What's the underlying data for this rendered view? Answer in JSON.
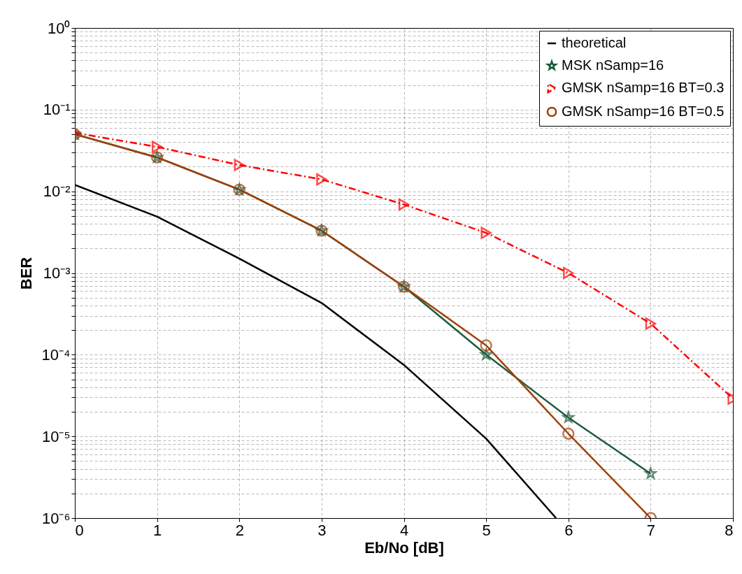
{
  "chart_data": {
    "type": "line",
    "xlabel": "Eb/No [dB]",
    "ylabel": "BER",
    "log": "y",
    "grid": true,
    "legend": "top right",
    "xlim": [
      0,
      8
    ],
    "xticks": [
      0,
      1,
      2,
      3,
      4,
      5,
      6,
      7,
      8
    ],
    "ylim": [
      1e-06,
      1
    ],
    "yticks": [
      {
        "value": 1e-06,
        "label": "10⁻⁶"
      },
      {
        "value": 2e-06,
        "label": null
      },
      {
        "value": 3e-06,
        "label": null
      },
      {
        "value": 4e-06,
        "label": null
      },
      {
        "value": 5e-06,
        "label": null
      },
      {
        "value": 6e-06,
        "label": null
      },
      {
        "value": 7e-06,
        "label": null
      },
      {
        "value": 8e-06,
        "label": null
      },
      {
        "value": 9e-06,
        "label": null
      },
      {
        "value": 1e-05,
        "label": "10⁻⁵"
      },
      {
        "value": 2e-05,
        "label": null
      },
      {
        "value": 3e-05,
        "label": null
      },
      {
        "value": 4e-05,
        "label": null
      },
      {
        "value": 5e-05,
        "label": null
      },
      {
        "value": 6e-05,
        "label": null
      },
      {
        "value": 7e-05,
        "label": null
      },
      {
        "value": 8e-05,
        "label": null
      },
      {
        "value": 9e-05,
        "label": null
      },
      {
        "value": 0.0001,
        "label": "10⁻⁴"
      },
      {
        "value": 0.0002,
        "label": null
      },
      {
        "value": 0.0003,
        "label": null
      },
      {
        "value": 0.0004,
        "label": null
      },
      {
        "value": 0.0005,
        "label": null
      },
      {
        "value": 0.0006,
        "label": null
      },
      {
        "value": 0.0007,
        "label": null
      },
      {
        "value": 0.0008,
        "label": null
      },
      {
        "value": 0.0009,
        "label": null
      },
      {
        "value": 0.001,
        "label": "10⁻³"
      },
      {
        "value": 0.002,
        "label": null
      },
      {
        "value": 0.003,
        "label": null
      },
      {
        "value": 0.004,
        "label": null
      },
      {
        "value": 0.005,
        "label": null
      },
      {
        "value": 0.006,
        "label": null
      },
      {
        "value": 0.007,
        "label": null
      },
      {
        "value": 0.008,
        "label": null
      },
      {
        "value": 0.009,
        "label": null
      },
      {
        "value": 0.01,
        "label": "10⁻²"
      },
      {
        "value": 0.02,
        "label": null
      },
      {
        "value": 0.03,
        "label": null
      },
      {
        "value": 0.04,
        "label": null
      },
      {
        "value": 0.05,
        "label": null
      },
      {
        "value": 0.06,
        "label": null
      },
      {
        "value": 0.07,
        "label": null
      },
      {
        "value": 0.08,
        "label": null
      },
      {
        "value": 0.09,
        "label": null
      },
      {
        "value": 0.1,
        "label": "10⁻¹"
      },
      {
        "value": 0.2,
        "label": null
      },
      {
        "value": 0.3,
        "label": null
      },
      {
        "value": 0.4,
        "label": null
      },
      {
        "value": 0.5,
        "label": null
      },
      {
        "value": 0.6,
        "label": null
      },
      {
        "value": 0.7,
        "label": null
      },
      {
        "value": 0.8,
        "label": null
      },
      {
        "value": 0.9,
        "label": null
      },
      {
        "value": 1,
        "label": "10⁰"
      }
    ],
    "series": [
      {
        "name": "theoretical",
        "color": "#000000",
        "marker": "none",
        "line_style": "solid",
        "x": [
          0,
          1,
          2,
          3,
          4,
          5,
          5.85
        ],
        "values": [
          0.012,
          0.0049,
          0.0015,
          0.00043,
          7.5e-05,
          9.4e-06,
          1e-06
        ]
      },
      {
        "name": "MSK nSamp=16",
        "color": "#1e5a3c",
        "marker": "star",
        "line_style": "solid",
        "x": [
          0,
          1,
          2,
          3,
          4,
          5,
          6,
          7
        ],
        "values": [
          0.05,
          0.026,
          0.0105,
          0.0033,
          0.00068,
          0.0001,
          1.7e-05,
          3.5e-06
        ]
      },
      {
        "name": "GMSK nSamp=16 BT=0.3",
        "color": "#ff0000",
        "marker": "triangle",
        "line_style": "dashed",
        "x": [
          0,
          1,
          2,
          3,
          4,
          5,
          6,
          7,
          8
        ],
        "values": [
          0.052,
          0.035,
          0.021,
          0.014,
          0.0069,
          0.0031,
          0.001,
          0.00024,
          2.9e-05
        ]
      },
      {
        "name": "GMSK nSamp=16 BT=0.5",
        "color": "#a0400a",
        "marker": "circle",
        "line_style": "solid",
        "x": [
          0,
          1,
          2,
          3,
          4,
          5,
          6,
          7
        ],
        "values": [
          0.05,
          0.026,
          0.0105,
          0.0033,
          0.00068,
          0.00013,
          1.08e-05,
          1e-06
        ]
      }
    ]
  }
}
